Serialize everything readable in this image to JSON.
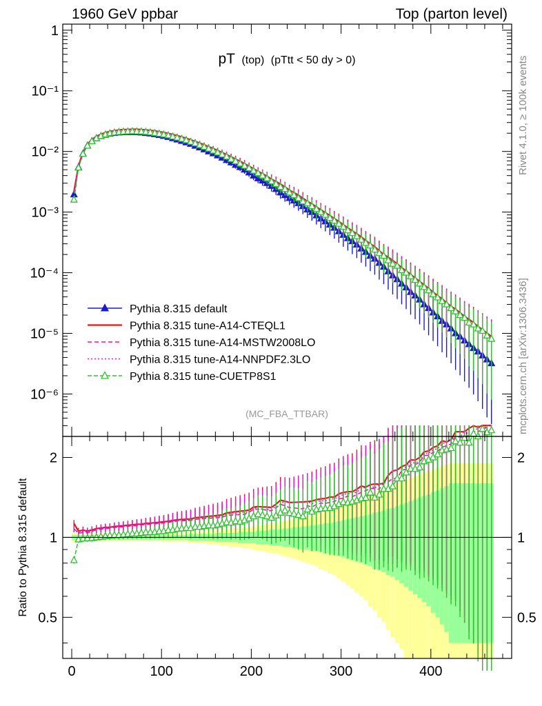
{
  "header": {
    "left": "1960 GeV ppbar",
    "right": "Top (parton level)"
  },
  "side_labels": {
    "rivet": "Rivet 4.1.0, ≥ 100k events",
    "mcplots": "mcplots.cern.ch [arXiv:1306.3436]"
  },
  "colors": {
    "default": "#1a1acc",
    "a14cteq": "#e8141c",
    "a14mstw": "#e8149a",
    "a14nnpdf": "#d21ed2",
    "cuetp8s1": "#2fc12f",
    "band_yellow": "#ffff99",
    "band_green": "#99ff99"
  },
  "chart_data": [
    {
      "type": "line",
      "panel": "main",
      "title_main": "pT",
      "title_sub": "(top)",
      "title_cut": "(pTtt < 50 dy > 0)",
      "reference": "(MC_FBA_TTBAR)",
      "xlabel": "",
      "ylabel": "",
      "xlim": [
        -10,
        490
      ],
      "ylim_log10": [
        -6.7,
        0.1
      ],
      "y_scale": "log",
      "y_ticks": [
        {
          "value": 1,
          "label": "1"
        },
        {
          "value": 0.1,
          "label": "10⁻¹"
        },
        {
          "value": 0.01,
          "label": "10⁻²"
        },
        {
          "value": 0.001,
          "label": "10⁻³"
        },
        {
          "value": 0.0001,
          "label": "10⁻⁴"
        },
        {
          "value": 1e-05,
          "label": "10⁻⁵"
        },
        {
          "value": 1e-06,
          "label": "10⁻⁶"
        }
      ],
      "x_ticks": [
        0,
        100,
        200,
        300,
        400
      ],
      "x_tick_labels": [
        "0",
        "100",
        "200",
        "300",
        "400"
      ],
      "x": [
        2.5,
        7.5,
        12.5,
        17.5,
        22.5,
        27.5,
        32.5,
        37.5,
        42.5,
        47.5,
        52.5,
        57.5,
        62.5,
        67.5,
        72.5,
        77.5,
        82.5,
        87.5,
        92.5,
        97.5,
        102.5,
        107.5,
        112.5,
        117.5,
        122.5,
        127.5,
        132.5,
        137.5,
        142.5,
        147.5,
        152.5,
        157.5,
        162.5,
        167.5,
        172.5,
        177.5,
        182.5,
        187.5,
        192.5,
        197.5,
        202.5,
        207.5,
        212.5,
        217.5,
        222.5,
        227.5,
        232.5,
        237.5,
        242.5,
        247.5,
        252.5,
        257.5,
        262.5,
        267.5,
        272.5,
        277.5,
        282.5,
        287.5,
        292.5,
        297.5,
        302.5,
        307.5,
        312.5,
        317.5,
        322.5,
        327.5,
        332.5,
        337.5,
        342.5,
        347.5,
        352.5,
        357.5,
        362.5,
        367.5,
        372.5,
        377.5,
        382.5,
        387.5,
        392.5,
        397.5,
        402.5,
        407.5,
        412.5,
        417.5,
        422.5,
        427.5,
        432.5,
        437.5,
        442.5,
        447.5,
        452.5,
        457.5,
        462.5,
        467.5
      ],
      "series": [
        {
          "name": "Pythia 8.315 default",
          "color_key": "default",
          "dash": "",
          "marker": "triangle-filled",
          "values": [
            0.00195,
            0.0055,
            0.0092,
            0.0125,
            0.0148,
            0.0165,
            0.0178,
            0.0188,
            0.0196,
            0.0201,
            0.0205,
            0.0207,
            0.0208,
            0.0208,
            0.0207,
            0.0205,
            0.0201,
            0.0197,
            0.0192,
            0.0186,
            0.018,
            0.0173,
            0.0165,
            0.0157,
            0.0149,
            0.0141,
            0.0133,
            0.0124,
            0.0116,
            0.0108,
            0.01,
            0.0093,
            0.0086,
            0.0079,
            0.0072,
            0.0066,
            0.006,
            0.0055,
            0.005,
            0.0045,
            0.004,
            0.0036,
            0.0033,
            0.003,
            0.0027,
            0.0024,
            0.0021,
            0.0019,
            0.0017,
            0.00155,
            0.0014,
            0.00125,
            0.0011,
            0.001,
            0.00088,
            0.00078,
            0.0007,
            0.00062,
            0.00055,
            0.00048,
            0.00042,
            0.00037,
            0.00033,
            0.00029,
            0.00025,
            0.00022,
            0.00019,
            0.00017,
            0.000145,
            0.000125,
            0.000105,
            9e-05,
            7.8e-05,
            6.6e-05,
            5.7e-05,
            4.8e-05,
            4.2e-05,
            3.6e-05,
            3e-05,
            2.6e-05,
            2.2e-05,
            1.9e-05,
            1.6e-05,
            1.4e-05,
            1.2e-05,
            1e-05,
            8.8e-06,
            7.6e-06,
            6.6e-06,
            5.7e-06,
            5e-06,
            4.3e-06,
            3.7e-06,
            3.2e-06
          ]
        },
        {
          "name": "Pythia 8.315 tune-A14-CTEQL1",
          "color_key": "a14cteq",
          "dash": "",
          "marker": "none",
          "values": [
            0.0022,
            0.0058,
            0.0098,
            0.0132,
            0.0158,
            0.0178,
            0.0193,
            0.0205,
            0.0214,
            0.0221,
            0.0226,
            0.0229,
            0.0231,
            0.0232,
            0.0232,
            0.023,
            0.0227,
            0.0223,
            0.0218,
            0.0212,
            0.0206,
            0.0199,
            0.0191,
            0.0183,
            0.0174,
            0.0165,
            0.0156,
            0.0147,
            0.0138,
            0.0129,
            0.012,
            0.0112,
            0.0104,
            0.0096,
            0.0089,
            0.0082,
            0.0075,
            0.0069,
            0.0063,
            0.0057,
            0.0052,
            0.0047,
            0.0043,
            0.0039,
            0.0035,
            0.0032,
            0.0029,
            0.0026,
            0.0023,
            0.0021,
            0.0019,
            0.0017,
            0.0015,
            0.00137,
            0.00122,
            0.00109,
            0.00098,
            0.00088,
            0.00078,
            0.0007,
            0.00062,
            0.00055,
            0.00049,
            0.00044,
            0.00039,
            0.00034,
            0.0003,
            0.00027,
            0.00023,
            0.0002,
            0.00018,
            0.00016,
            0.00014,
            0.000122,
            0.000107,
            9.4e-05,
            8.2e-05,
            7.2e-05,
            6.3e-05,
            5.5e-05,
            4.8e-05,
            4.2e-05,
            3.7e-05,
            3.2e-05,
            2.8e-05,
            2.5e-05,
            2.2e-05,
            1.9e-05,
            1.7e-05,
            1.5e-05,
            1.3e-05,
            1.15e-05,
            1.01e-05,
            8.9e-06
          ]
        },
        {
          "name": "Pythia 8.315 tune-A14-MSTW2008LO",
          "color_key": "a14mstw",
          "dash": "6,4",
          "marker": "none",
          "values": [
            0.0021,
            0.0057,
            0.0096,
            0.013,
            0.0156,
            0.0176,
            0.0191,
            0.0203,
            0.0212,
            0.0219,
            0.0224,
            0.0227,
            0.0229,
            0.023,
            0.0229,
            0.0228,
            0.0225,
            0.0221,
            0.0216,
            0.021,
            0.0204,
            0.0197,
            0.0189,
            0.0181,
            0.0172,
            0.0163,
            0.0154,
            0.0145,
            0.0136,
            0.0127,
            0.0118,
            0.011,
            0.0102,
            0.0094,
            0.0087,
            0.008,
            0.0073,
            0.0067,
            0.0061,
            0.0056,
            0.0051,
            0.0046,
            0.0042,
            0.0038,
            0.0034,
            0.0031,
            0.0028,
            0.0025,
            0.0022,
            0.002,
            0.0018,
            0.0016,
            0.00145,
            0.0013,
            0.00117,
            0.00105,
            0.00094,
            0.00084,
            0.00075,
            0.00067,
            0.00059,
            0.00053,
            0.00047,
            0.00042,
            0.00037,
            0.00033,
            0.00029,
            0.00026,
            0.00022,
            0.0002,
            0.00017,
            0.00015,
            0.00013,
            0.000118,
            0.000103,
            9e-05,
            7.9e-05,
            6.9e-05,
            6.1e-05,
            5.3e-05,
            4.6e-05,
            4e-05,
            3.5e-05,
            3.1e-05,
            2.7e-05,
            2.4e-05,
            2.1e-05,
            1.8e-05,
            1.6e-05,
            1.4e-05,
            1.25e-05,
            1.1e-05,
            9.6e-06,
            8.5e-06
          ]
        },
        {
          "name": "Pythia 8.315 tune-A14-NNPDF2.3LO",
          "color_key": "a14nnpdf",
          "dash": "2,3",
          "marker": "none",
          "values": [
            0.0021,
            0.0057,
            0.0097,
            0.0131,
            0.0157,
            0.0177,
            0.0192,
            0.0204,
            0.0213,
            0.022,
            0.0225,
            0.0228,
            0.023,
            0.0231,
            0.023,
            0.0229,
            0.0226,
            0.0222,
            0.0217,
            0.0211,
            0.0205,
            0.0198,
            0.019,
            0.0182,
            0.0173,
            0.0164,
            0.0155,
            0.0146,
            0.0137,
            0.0128,
            0.0119,
            0.0111,
            0.0103,
            0.0095,
            0.0088,
            0.0081,
            0.0074,
            0.0068,
            0.0062,
            0.0056,
            0.0051,
            0.0047,
            0.0042,
            0.0038,
            0.0035,
            0.0031,
            0.0028,
            0.0026,
            0.0023,
            0.0021,
            0.0019,
            0.0017,
            0.0015,
            0.00134,
            0.0012,
            0.00107,
            0.00096,
            0.00086,
            0.00077,
            0.00068,
            0.00061,
            0.00054,
            0.00048,
            0.00043,
            0.00038,
            0.00034,
            0.0003,
            0.00026,
            0.00023,
            0.0002,
            0.00018,
            0.00016,
            0.00014,
            0.00012,
            0.000105,
            9.2e-05,
            8e-05,
            7e-05,
            6.2e-05,
            5.4e-05,
            4.7e-05,
            4.1e-05,
            3.6e-05,
            3.2e-05,
            2.8e-05,
            2.4e-05,
            2.1e-05,
            1.9e-05,
            1.6e-05,
            1.4e-05,
            1.3e-05,
            1.1e-05,
            9.8e-06,
            8.6e-06
          ]
        },
        {
          "name": "Pythia 8.315 tune-CUETP8S1",
          "color_key": "cuetp8s1",
          "dash": "6,3",
          "marker": "triangle-open",
          "values": [
            0.0016,
            0.0054,
            0.0091,
            0.0124,
            0.0147,
            0.0165,
            0.0179,
            0.019,
            0.0199,
            0.0205,
            0.0209,
            0.0212,
            0.0214,
            0.0215,
            0.0214,
            0.0213,
            0.021,
            0.0206,
            0.0201,
            0.0196,
            0.019,
            0.0184,
            0.0176,
            0.0169,
            0.0161,
            0.0153,
            0.0144,
            0.0136,
            0.0127,
            0.0119,
            0.0111,
            0.0103,
            0.0096,
            0.0089,
            0.0082,
            0.0075,
            0.0069,
            0.0063,
            0.0058,
            0.0053,
            0.0048,
            0.0044,
            0.004,
            0.0036,
            0.0032,
            0.0029,
            0.0026,
            0.0024,
            0.0021,
            0.0019,
            0.0017,
            0.0015,
            0.0014,
            0.00125,
            0.00112,
            0.001,
            0.0009,
            0.0008,
            0.00072,
            0.00064,
            0.00057,
            0.0005,
            0.00045,
            0.0004,
            0.00035,
            0.00031,
            0.00028,
            0.00024,
            0.00021,
            0.00019,
            0.00016,
            0.00014,
            0.00013,
            0.00011,
            0.0001,
            8.7e-05,
            7.6e-05,
            6.6e-05,
            5.8e-05,
            5.1e-05,
            4.4e-05,
            3.9e-05,
            3.4e-05,
            3e-05,
            2.6e-05,
            2.3e-05,
            2e-05,
            1.8e-05,
            1.5e-05,
            1.4e-05,
            1.2e-05,
            1.1e-05,
            9.2e-06,
            8.1e-06
          ]
        }
      ]
    },
    {
      "type": "line",
      "panel": "ratio",
      "xlabel": "",
      "ylabel": "Ratio to Pythia 8.315 default",
      "xlim": [
        -10,
        490
      ],
      "ylim": [
        0.35,
        2.4
      ],
      "y_scale": "log",
      "y_ticks": [
        {
          "value": 0.5,
          "label": "0.5"
        },
        {
          "value": 1,
          "label": "1"
        },
        {
          "value": 2,
          "label": "2"
        }
      ],
      "x_ticks": [
        0,
        100,
        200,
        300,
        400
      ],
      "x_tick_labels": [
        "0",
        "100",
        "200",
        "300",
        "400"
      ],
      "bands": {
        "yellow_half_width": [
          0.04,
          0.03,
          0.03,
          0.03,
          0.03,
          0.03,
          0.03,
          0.03,
          0.03,
          0.03,
          0.03,
          0.03,
          0.03,
          0.03,
          0.03,
          0.03,
          0.03,
          0.03,
          0.03,
          0.03,
          0.04,
          0.04,
          0.04,
          0.04,
          0.04,
          0.04,
          0.05,
          0.05,
          0.05,
          0.05,
          0.06,
          0.06,
          0.06,
          0.07,
          0.07,
          0.08,
          0.08,
          0.08,
          0.09,
          0.09,
          0.1,
          0.11,
          0.11,
          0.12,
          0.13,
          0.13,
          0.14,
          0.15,
          0.16,
          0.17,
          0.18,
          0.19,
          0.2,
          0.21,
          0.22,
          0.24,
          0.25,
          0.27,
          0.28,
          0.3,
          0.32,
          0.34,
          0.36,
          0.38,
          0.4,
          0.42,
          0.45,
          0.47,
          0.5,
          0.52,
          0.55,
          0.58,
          0.6,
          0.62,
          0.65,
          0.68,
          0.7,
          0.72,
          0.75,
          0.78,
          0.8,
          0.82,
          0.85,
          0.88,
          0.9,
          0.9,
          0.9,
          0.9,
          0.9,
          0.9,
          0.9,
          0.9,
          0.9,
          0.9
        ],
        "green_half_width": [
          0.02,
          0.02,
          0.02,
          0.02,
          0.02,
          0.02,
          0.02,
          0.02,
          0.02,
          0.02,
          0.02,
          0.02,
          0.02,
          0.02,
          0.02,
          0.02,
          0.02,
          0.02,
          0.02,
          0.02,
          0.02,
          0.02,
          0.02,
          0.02,
          0.02,
          0.02,
          0.03,
          0.03,
          0.03,
          0.03,
          0.03,
          0.03,
          0.04,
          0.04,
          0.04,
          0.04,
          0.04,
          0.05,
          0.05,
          0.05,
          0.05,
          0.06,
          0.06,
          0.06,
          0.07,
          0.07,
          0.07,
          0.08,
          0.08,
          0.09,
          0.09,
          0.1,
          0.1,
          0.11,
          0.11,
          0.12,
          0.13,
          0.13,
          0.14,
          0.15,
          0.16,
          0.17,
          0.18,
          0.19,
          0.2,
          0.21,
          0.22,
          0.24,
          0.25,
          0.26,
          0.28,
          0.29,
          0.31,
          0.33,
          0.35,
          0.37,
          0.39,
          0.41,
          0.43,
          0.45,
          0.48,
          0.5,
          0.53,
          0.56,
          0.6,
          0.6,
          0.6,
          0.6,
          0.6,
          0.6,
          0.6,
          0.6,
          0.6,
          0.6
        ]
      }
    }
  ]
}
